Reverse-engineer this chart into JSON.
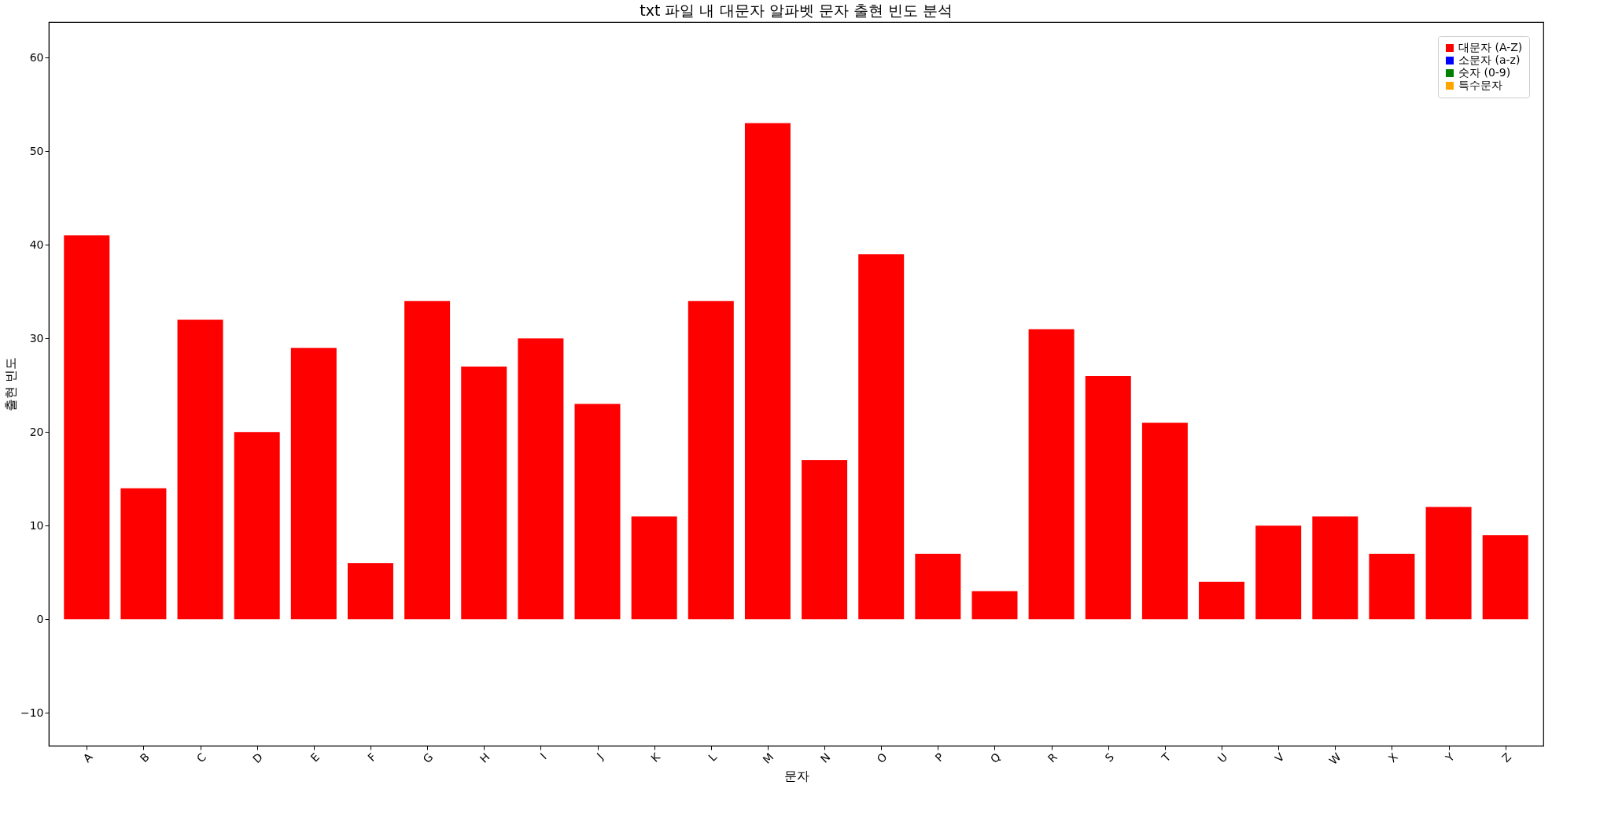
{
  "chart_data": {
    "type": "bar",
    "title": "txt 파일 내 대문자 알파벳 문자 출현 빈도 분석",
    "xlabel": "문자",
    "ylabel": "출현 빈도",
    "categories": [
      "A",
      "B",
      "C",
      "D",
      "E",
      "F",
      "G",
      "H",
      "I",
      "J",
      "K",
      "L",
      "M",
      "N",
      "O",
      "P",
      "Q",
      "R",
      "S",
      "T",
      "U",
      "V",
      "W",
      "X",
      "Y",
      "Z"
    ],
    "series": [
      {
        "name": "대문자 (A-Z)",
        "color": "#ff0000",
        "values": [
          41,
          14,
          32,
          20,
          29,
          6,
          34,
          27,
          30,
          23,
          11,
          34,
          53,
          17,
          39,
          7,
          3,
          31,
          26,
          21,
          4,
          10,
          11,
          7,
          12,
          9
        ]
      },
      {
        "name": "소문자 (a-z)",
        "color": "#0000ff",
        "values": [
          null,
          null,
          null,
          null,
          null,
          null,
          null,
          null,
          null,
          null,
          null,
          null,
          null,
          null,
          null,
          null,
          null,
          null,
          null,
          null,
          null,
          null,
          null,
          null,
          null,
          null
        ]
      },
      {
        "name": "숫자 (0-9)",
        "color": "#008000",
        "values": [
          null,
          null,
          null,
          null,
          null,
          null,
          null,
          null,
          null,
          null,
          null,
          null,
          null,
          null,
          null,
          null,
          null,
          null,
          null,
          null,
          null,
          null,
          null,
          null,
          null,
          null
        ]
      },
      {
        "name": "특수문자",
        "color": "#ffa500",
        "values": [
          null,
          null,
          null,
          null,
          null,
          null,
          null,
          null,
          null,
          null,
          null,
          null,
          null,
          null,
          null,
          null,
          null,
          null,
          null,
          null,
          null,
          null,
          null,
          null,
          null,
          null
        ]
      }
    ],
    "ylim": [
      -13.5,
      63.8
    ],
    "yticks": [
      -10,
      0,
      10,
      20,
      30,
      40,
      50,
      60
    ],
    "grid": false,
    "legend": "top right"
  }
}
